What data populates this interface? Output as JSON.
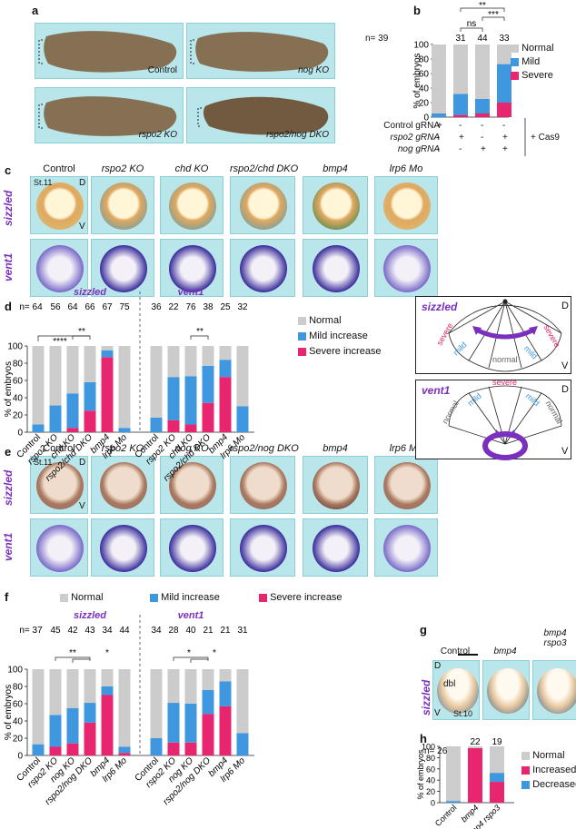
{
  "panels": {
    "a": "a",
    "b": "b",
    "c": "c",
    "d": "d",
    "e": "e",
    "f": "f",
    "g": "g",
    "h": "h"
  },
  "panel_a": {
    "captions": [
      "Control",
      "nog KO",
      "rspo2 KO",
      "rspo2/nog DKO"
    ]
  },
  "panel_b": {
    "n_label": "n= 39",
    "n_values": [
      "31",
      "44",
      "33"
    ],
    "sig": [
      "ns",
      "**",
      "***"
    ],
    "rows": [
      {
        "label": "Control gRNA",
        "signs": [
          "+",
          "-",
          "-",
          "-"
        ]
      },
      {
        "label": "rspo2 gRNA",
        "signs": [
          "-",
          "+",
          "-",
          "+"
        ]
      },
      {
        "label": "nog gRNA",
        "signs": [
          "-",
          "-",
          "+",
          "+"
        ]
      }
    ],
    "cas9": "+ Cas9"
  },
  "panel_c": {
    "columns": [
      "Control",
      "rspo2 KO",
      "chd KO",
      "rspo2/chd DKO",
      "bmp4",
      "lrp6 Mo"
    ],
    "rows": [
      "sizzled",
      "vent1"
    ],
    "stage": "St.11",
    "D": "D",
    "V": "V"
  },
  "panel_d": {
    "n_values": [
      "n= 64",
      "56",
      "64",
      "66",
      "67",
      "75",
      "36",
      "22",
      "76",
      "38",
      "25",
      "32"
    ],
    "sig": [
      "****",
      "**",
      "**"
    ],
    "schematic": {
      "sizzled": {
        "title": "sizzled",
        "labels": [
          "severe",
          "mild",
          "normal",
          "mild",
          "severe"
        ],
        "D": "D",
        "V": "V"
      },
      "vent1": {
        "title": "vent1",
        "labels": [
          "normal",
          "mild",
          "severe",
          "mild",
          "normal"
        ],
        "D": "D",
        "V": "V"
      }
    }
  },
  "panel_e": {
    "columns": [
      "Control",
      "rspo2 KO",
      "nog KO",
      "rspo2/nog DKO",
      "bmp4",
      "lrp6 Mo"
    ],
    "rows": [
      "sizzled",
      "vent1"
    ],
    "stage": "St.11",
    "D": "D",
    "V": "V"
  },
  "panel_f": {
    "n_values": [
      "n= 37",
      "45",
      "42",
      "43",
      "34",
      "44",
      "34",
      "28",
      "40",
      "21",
      "21",
      "31"
    ],
    "sig": [
      "**",
      "*",
      "*",
      "*"
    ]
  },
  "panel_g": {
    "columns": [
      "Control",
      "bmp4",
      "bmp4\nrspo3"
    ],
    "row": "sizzled",
    "dbl": "dbl",
    "stage": "St.10",
    "D": "D",
    "V": "V"
  },
  "panel_h": {
    "n_label": "n= 26",
    "n_values": [
      "22",
      "19"
    ]
  },
  "colors": {
    "normal": "#cccccc",
    "mild": "#3f97e0",
    "severe": "#e8256f",
    "purple": "#7b2fbe",
    "embryo_bg": "#b8e6ea"
  },
  "chart_data": [
    {
      "type": "bar",
      "panel": "b",
      "stacked": true,
      "categories": [
        "1",
        "2",
        "3",
        "4"
      ],
      "series": [
        {
          "name": "Severe",
          "values": [
            0,
            3,
            5,
            20
          ]
        },
        {
          "name": "Mild",
          "values": [
            5,
            29,
            20,
            53
          ]
        },
        {
          "name": "Normal",
          "values": [
            95,
            68,
            75,
            27
          ]
        }
      ],
      "ylabel": "% of embryos",
      "ylim": [
        0,
        100
      ],
      "yticks": [
        "0",
        "20",
        "40",
        "60",
        "80",
        "100"
      ]
    },
    {
      "type": "bar",
      "panel": "d",
      "stacked": true,
      "categories": [
        "Control",
        "rspo2 KO",
        "chd KO",
        "rspo2/chd DKO",
        "bmp4",
        "lrp6 Mo",
        "Control",
        "rspo2 KO",
        "chd KO",
        "rspo2/chd DKO",
        "bmp4",
        "lrp6 Mo"
      ],
      "groups": [
        "sizzled",
        "vent1"
      ],
      "series": [
        {
          "name": "Severe increase",
          "values": [
            0,
            0,
            5,
            25,
            87,
            0,
            0,
            14,
            9,
            34,
            64,
            0
          ]
        },
        {
          "name": "Mild increase",
          "values": [
            9,
            31,
            40,
            33,
            8,
            5,
            17,
            50,
            56,
            43,
            20,
            30
          ]
        },
        {
          "name": "Normal",
          "values": [
            91,
            69,
            55,
            42,
            5,
            95,
            83,
            36,
            35,
            23,
            16,
            70
          ]
        }
      ],
      "ylabel": "% of embryos",
      "ylim": [
        0,
        100
      ],
      "yticks": [
        "0",
        "20",
        "40",
        "60",
        "80",
        "100"
      ]
    },
    {
      "type": "bar",
      "panel": "f",
      "stacked": true,
      "categories": [
        "Control",
        "rspo2 KO",
        "nog KO",
        "rspo2/nog DKO",
        "bmp4",
        "lrp6 Mo",
        "Control",
        "rspo2 KO",
        "nog KO",
        "rspo2/nog DKO",
        "bmp4",
        "lrp6 Mo"
      ],
      "groups": [
        "sizzled",
        "vent1"
      ],
      "series": [
        {
          "name": "Severe increase",
          "values": [
            0,
            10,
            14,
            38,
            70,
            3,
            0,
            15,
            15,
            48,
            57,
            0
          ]
        },
        {
          "name": "Mild increase",
          "values": [
            13,
            37,
            41,
            23,
            10,
            7,
            20,
            46,
            45,
            28,
            29,
            26
          ]
        },
        {
          "name": "Normal",
          "values": [
            87,
            53,
            45,
            39,
            20,
            90,
            80,
            39,
            40,
            24,
            14,
            74
          ]
        }
      ],
      "ylabel": "% of embryos",
      "ylim": [
        0,
        100
      ],
      "yticks": [
        "0",
        "20",
        "40",
        "60",
        "80",
        "100"
      ]
    },
    {
      "type": "bar",
      "panel": "h",
      "stacked": true,
      "categories": [
        "Control",
        "bmp4",
        "bmp4 rspo3"
      ],
      "series": [
        {
          "name": "Increased",
          "values": [
            0,
            97,
            37
          ]
        },
        {
          "name": "Decreased",
          "values": [
            3,
            0,
            16
          ]
        },
        {
          "name": "Normal",
          "values": [
            97,
            3,
            47
          ]
        }
      ],
      "ylabel": "% of embryos",
      "ylim": [
        0,
        100
      ],
      "yticks": [
        "0",
        "20",
        "40",
        "60",
        "80",
        "100"
      ]
    }
  ]
}
